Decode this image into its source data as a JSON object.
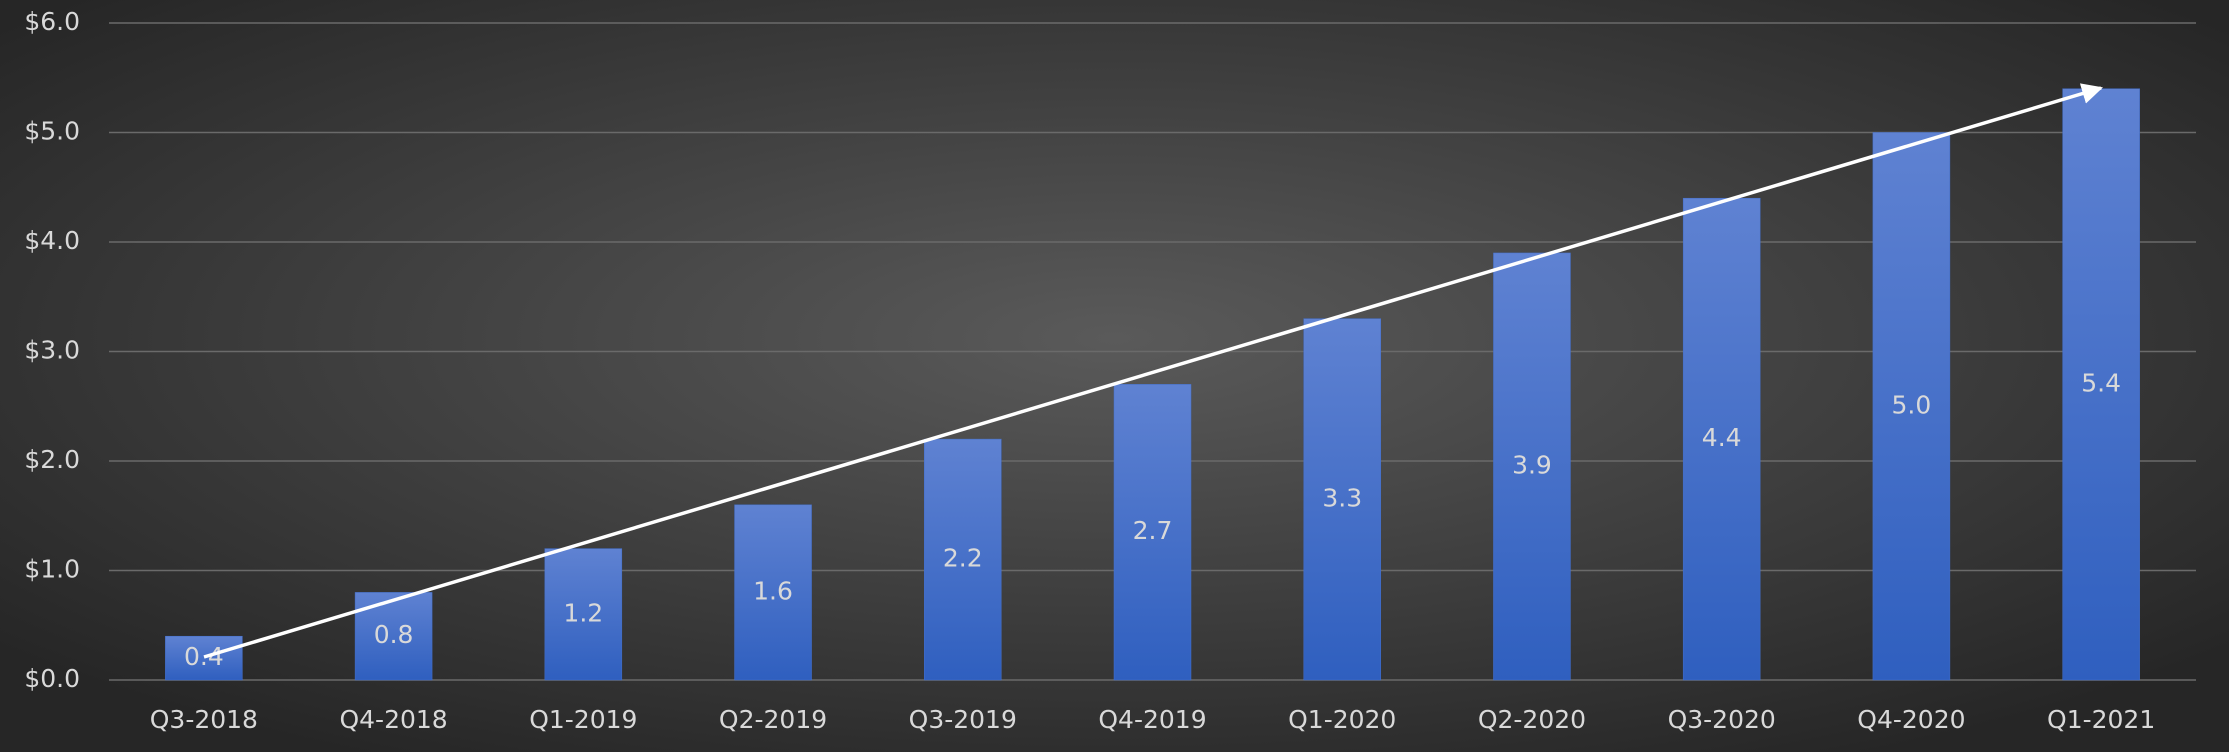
{
  "chart_data": {
    "type": "bar",
    "categories": [
      "Q3-2018",
      "Q4-2018",
      "Q1-2019",
      "Q2-2019",
      "Q3-2019",
      "Q4-2019",
      "Q1-2020",
      "Q2-2020",
      "Q3-2020",
      "Q4-2020",
      "Q1-2021"
    ],
    "values": [
      0.4,
      0.8,
      1.2,
      1.6,
      2.2,
      2.7,
      3.3,
      3.9,
      4.4,
      5.0,
      5.4
    ],
    "value_labels": [
      "0.4",
      "0.8",
      "1.2",
      "1.6",
      "2.2",
      "2.7",
      "3.3",
      "3.9",
      "4.4",
      "5.0",
      "5.4"
    ],
    "color": "#4470cc",
    "ylim": [
      0,
      6
    ],
    "yticks": [
      {
        "value": 0,
        "label": "$0.0"
      },
      {
        "value": 1,
        "label": "$1.0"
      },
      {
        "value": 2,
        "label": "$2.0"
      },
      {
        "value": 3,
        "label": "$3.0"
      },
      {
        "value": 4,
        "label": "$4.0"
      },
      {
        "value": 5,
        "label": "$5.0"
      },
      {
        "value": 6,
        "label": "$6.0"
      }
    ],
    "grid": true
  }
}
